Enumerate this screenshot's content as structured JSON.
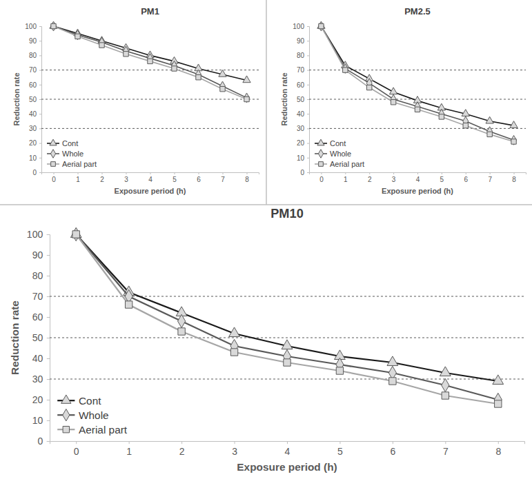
{
  "chart_data": [
    {
      "type": "line",
      "title": "PM1",
      "x_label": "Exposure period (h)",
      "y_label": "Reduction rate",
      "categories": [
        "0",
        "1",
        "2",
        "3",
        "4",
        "5",
        "6",
        "7",
        "8"
      ],
      "ylim": [
        0,
        100
      ],
      "yticks": [
        0,
        10,
        20,
        30,
        40,
        50,
        60,
        70,
        80,
        90,
        100
      ],
      "reference_lines": [
        30,
        50,
        70
      ],
      "legend": "lower left",
      "series": [
        {
          "name": "Cont",
          "color": "#1a1a1a",
          "marker": "triangle",
          "line_style": "solid",
          "values": [
            100,
            95,
            90,
            85,
            80,
            76,
            71,
            67,
            63
          ]
        },
        {
          "name": "Whole",
          "color": "#595959",
          "marker": "diamond",
          "line_style": "solid",
          "values": [
            100,
            94,
            89,
            83,
            78,
            73,
            67,
            59,
            51
          ]
        },
        {
          "name": "Aerial part",
          "color": "#a6a6a6",
          "marker": "square",
          "line_style": "solid",
          "values": [
            100,
            93,
            87,
            81,
            76,
            71,
            65,
            57,
            50
          ]
        }
      ]
    },
    {
      "type": "line",
      "title": "PM2.5",
      "x_label": "Exposure period (h)",
      "y_label": "Reduction rate",
      "categories": [
        "0",
        "1",
        "2",
        "3",
        "4",
        "5",
        "6",
        "7",
        "8"
      ],
      "ylim": [
        0,
        100
      ],
      "yticks": [
        0,
        10,
        20,
        30,
        40,
        50,
        60,
        70,
        80,
        90,
        100
      ],
      "reference_lines": [
        30,
        50,
        70
      ],
      "legend": "lower left",
      "series": [
        {
          "name": "Cont",
          "color": "#1a1a1a",
          "marker": "triangle",
          "line_style": "solid",
          "values": [
            100,
            73,
            64,
            55,
            49,
            44,
            40,
            35,
            32
          ]
        },
        {
          "name": "Whole",
          "color": "#595959",
          "marker": "diamond",
          "line_style": "solid",
          "values": [
            100,
            71,
            61,
            50,
            45,
            40,
            35,
            28,
            22
          ]
        },
        {
          "name": "Aerial part",
          "color": "#a6a6a6",
          "marker": "square",
          "line_style": "solid",
          "values": [
            100,
            70,
            58,
            48,
            43,
            38,
            32,
            26,
            21
          ]
        }
      ]
    },
    {
      "type": "line",
      "title": "PM10",
      "x_label": "Exposure period (h)",
      "y_label": "Reduction rate",
      "categories": [
        "0",
        "1",
        "2",
        "3",
        "4",
        "5",
        "6",
        "7",
        "8"
      ],
      "ylim": [
        0,
        100
      ],
      "yticks": [
        0,
        10,
        20,
        30,
        40,
        50,
        60,
        70,
        80,
        90,
        100
      ],
      "reference_lines": [
        30,
        50,
        70
      ],
      "legend": "lower left",
      "series": [
        {
          "name": "Cont",
          "color": "#1a1a1a",
          "marker": "triangle",
          "line_style": "solid",
          "values": [
            100,
            72,
            62,
            52,
            46,
            41,
            38,
            33,
            29
          ]
        },
        {
          "name": "Whole",
          "color": "#595959",
          "marker": "diamond",
          "line_style": "solid",
          "values": [
            100,
            70,
            58,
            46,
            41,
            37,
            33,
            27,
            20
          ]
        },
        {
          "name": "Aerial part",
          "color": "#a6a6a6",
          "marker": "square",
          "line_style": "solid",
          "values": [
            100,
            66,
            53,
            43,
            38,
            34,
            29,
            22,
            18
          ]
        }
      ]
    }
  ]
}
